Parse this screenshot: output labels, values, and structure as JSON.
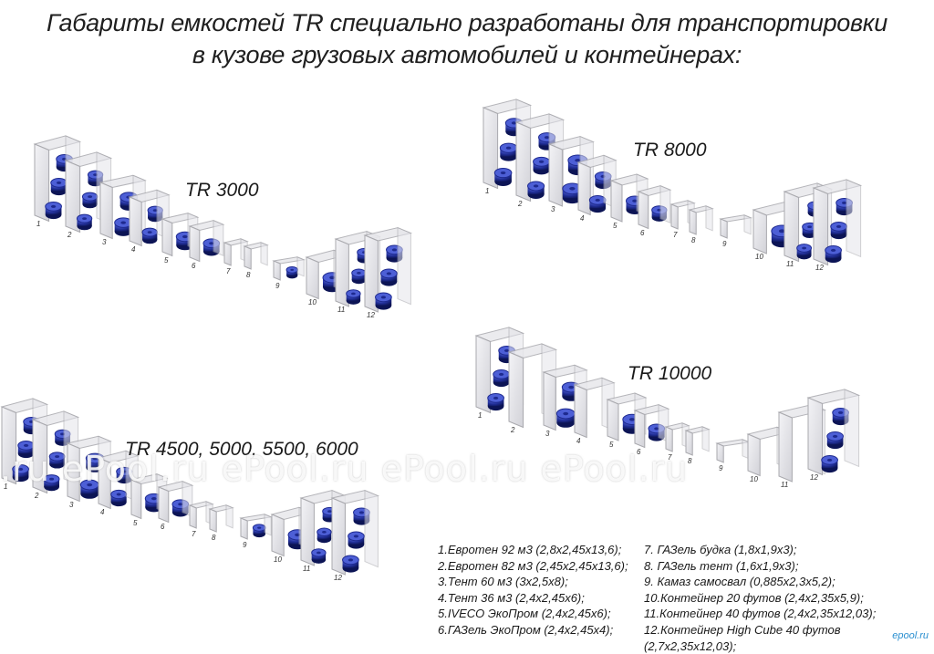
{
  "title": {
    "line1": "Габариты емкостей TR специально разработаны для транспортировки",
    "line2": "в кузове грузовых автомобилей и контейнерах:"
  },
  "groups": [
    {
      "name": "TR 3000",
      "ids": [
        "1",
        "2",
        "3",
        "4",
        "5",
        "6",
        "7",
        "8",
        "9",
        "10",
        "11",
        "12"
      ]
    },
    {
      "name": "TR 8000",
      "ids": [
        "1",
        "2",
        "3",
        "4",
        "5",
        "6",
        "7",
        "8",
        "9",
        "10",
        "11",
        "12"
      ]
    },
    {
      "name": "TR 4500, 5000, 5500, 6000",
      "ids": [
        "1",
        "2",
        "3",
        "4",
        "5",
        "6",
        "7",
        "8",
        "9",
        "10",
        "11",
        "12"
      ]
    },
    {
      "name": "TR 10000",
      "ids": [
        "1",
        "2",
        "3",
        "4",
        "5",
        "6",
        "7",
        "8",
        "9",
        "10",
        "11",
        "12"
      ]
    }
  ],
  "watermark": ".ru   ePool.ru   ePool.ru   ePool.ru   ePool.ru",
  "legend_left": [
    "1.Евротен 92 м3 (2,8x2,45x13,6);",
    "2.Евротен 82 м3 (2,45x2,45x13,6);",
    "3.Тент 60 м3 (3x2,5x8);",
    "4.Тент 36 м3 (2,4x2,45x6);",
    "5.IVECO ЭкоПром (2,4x2,45x6);",
    "6.ГАЗель ЭкоПром (2,4x2,45x4);"
  ],
  "legend_right": [
    "7.  ГАЗель будка (1,8x1,9x3);",
    "8.  ГАЗель тент (1,6x1,9x3);",
    "9.  Камаз самосвал (0,885x2,3x5,2);",
    "10.Контейнер 20 футов (2,4x2,35x5,9);",
    "11.Контейнер 40 футов (2,4x2,35x12,03);",
    "12.Контейнер High Cube 40 футов (2,7x2,35x12,03);"
  ],
  "brand": "epool.ru",
  "colors": {
    "tank": "#1e2a8f",
    "tank_highlight": "#4d5fd6",
    "container_fill": "#e8e8ec",
    "container_edge": "#a9a9ae"
  }
}
